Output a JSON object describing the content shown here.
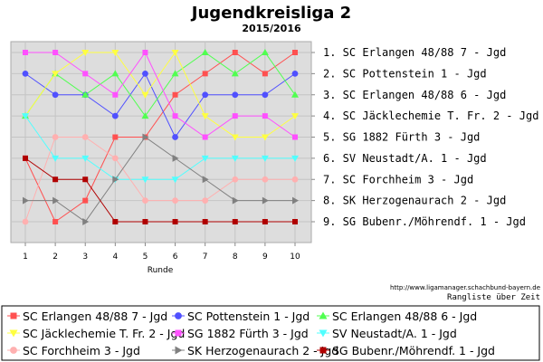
{
  "chart_data": {
    "type": "line",
    "title": "Jugendkreisliga 2",
    "subtitle": "2015/2016",
    "xlabel": "Runde",
    "ylabel": "",
    "x": [
      1,
      2,
      3,
      4,
      5,
      6,
      7,
      8,
      9,
      10
    ],
    "ylim": [
      1,
      9
    ],
    "y_reversed": true,
    "grid": true,
    "right_labels": [
      "1. SC Erlangen 48/88 7 - Jgd",
      "2. SC Pottenstein 1 - Jgd",
      "3. SC Erlangen 48/88 6 - Jgd",
      "4. SC Jäcklechemie T. Fr. 2 - Jgd",
      "5. SG 1882 Fürth 3 - Jgd",
      "6. SV Neustadt/A. 1 - Jgd",
      "7. SC Forchheim 3 - Jgd",
      "8. SK Herzogenaurach 2 - Jgd",
      "9. SG Bubenr./Möhrendf. 1 - Jgd"
    ],
    "source_url": "http://www.ligamanager.schachbund-bayern.de",
    "caption": "Rangliste über Zeit",
    "legend_position": "bottom",
    "series": [
      {
        "name": "SC Erlangen 48/88 7 - Jgd",
        "color": "#ff5050",
        "marker": "square",
        "values": [
          6,
          9,
          8,
          5,
          5,
          3,
          2,
          1,
          2,
          1
        ]
      },
      {
        "name": "SC Pottenstein 1 - Jgd",
        "color": "#5050ff",
        "marker": "circle",
        "values": [
          2,
          3,
          3,
          4,
          2,
          5,
          3,
          3,
          3,
          2
        ]
      },
      {
        "name": "SC Erlangen 48/88 6 - Jgd",
        "color": "#50ff50",
        "marker": "triangle-up",
        "values": [
          4,
          2,
          3,
          2,
          4,
          2,
          1,
          2,
          1,
          3
        ]
      },
      {
        "name": "SC Jäcklechemie T. Fr. 2 - Jgd",
        "color": "#ffff40",
        "marker": "triangle-down",
        "values": [
          4,
          2,
          1,
          1,
          3,
          1,
          4,
          5,
          5,
          4
        ]
      },
      {
        "name": "SG 1882 Fürth 3 - Jgd",
        "color": "#ff50ff",
        "marker": "square",
        "values": [
          1,
          1,
          2,
          3,
          1,
          4,
          5,
          4,
          4,
          5
        ]
      },
      {
        "name": "SV Neustadt/A. 1 - Jgd",
        "color": "#50ffff",
        "marker": "triangle-down",
        "values": [
          4,
          6,
          6,
          7,
          7,
          7,
          6,
          6,
          6,
          6
        ]
      },
      {
        "name": "SC Forchheim 3 - Jgd",
        "color": "#ffb0b0",
        "marker": "circle",
        "values": [
          9,
          5,
          5,
          6,
          8,
          8,
          8,
          7,
          7,
          7
        ]
      },
      {
        "name": "SK Herzogenaurach 2 - Jgd",
        "color": "#808080",
        "marker": "triangle-right",
        "values": [
          8,
          8,
          9,
          7,
          5,
          6,
          7,
          8,
          8,
          8
        ]
      },
      {
        "name": "SG Bubenr./Möhrendf. 1 - Jgd",
        "color": "#b00000",
        "marker": "square",
        "values": [
          6,
          7,
          7,
          9,
          9,
          9,
          9,
          9,
          9,
          9
        ]
      }
    ]
  }
}
